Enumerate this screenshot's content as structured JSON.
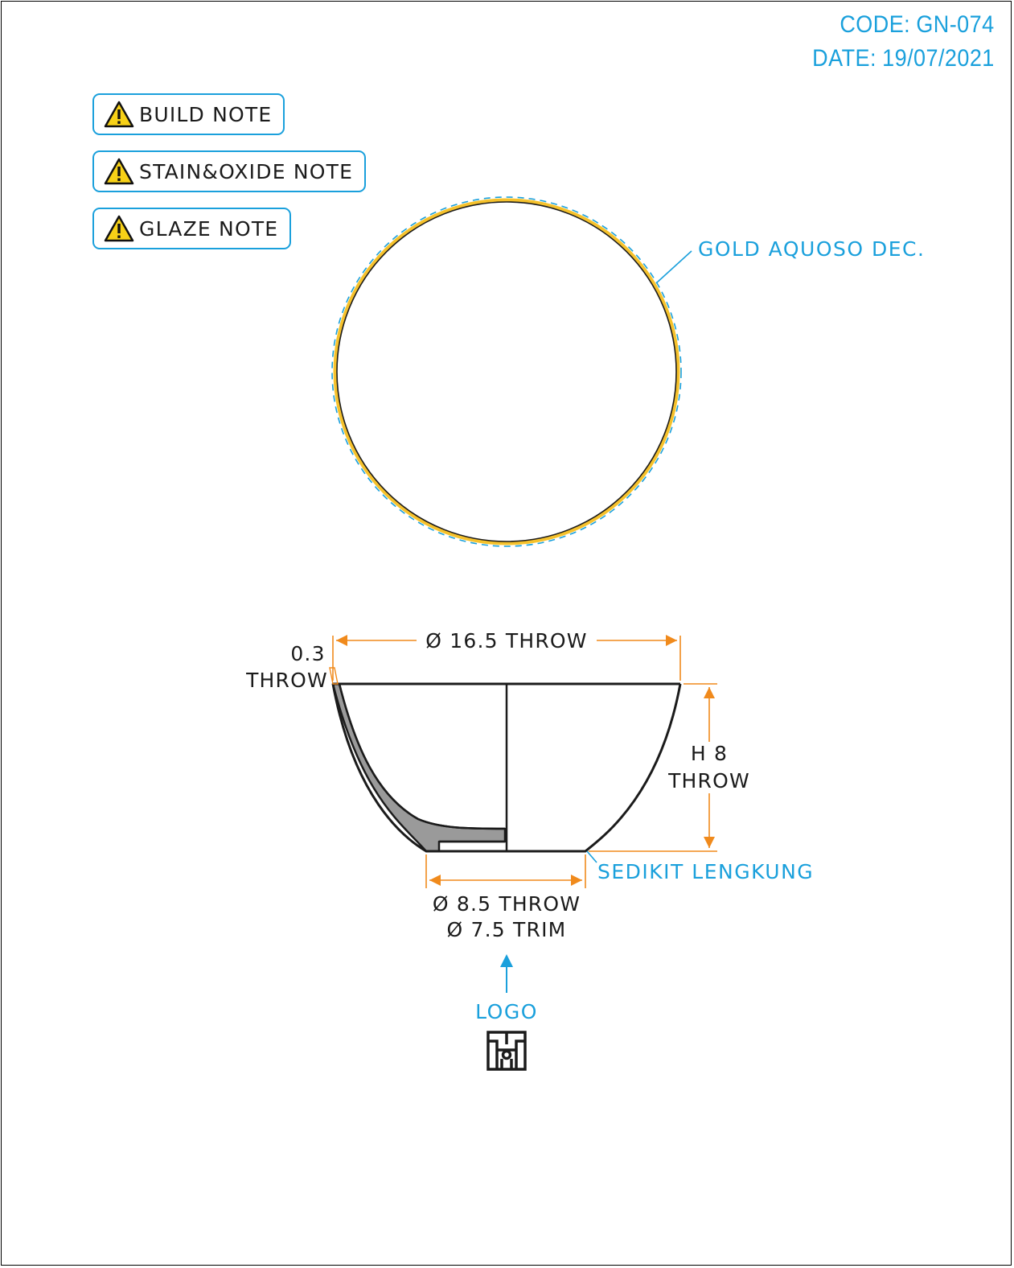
{
  "header": {
    "code_label": "CODE:",
    "code_value": "GN-074",
    "date_label": "DATE:",
    "date_value": "19/07/2021"
  },
  "notes": [
    {
      "label": "BUILD NOTE",
      "icon": "warning-icon"
    },
    {
      "label": "STAIN&OXIDE NOTE",
      "icon": "warning-icon"
    },
    {
      "label": "GLAZE NOTE",
      "icon": "warning-icon"
    }
  ],
  "top_view": {
    "decoration_label": "GOLD AQUOSO DEC."
  },
  "side_view": {
    "rim_diameter": "Ø 16.5 THROW",
    "wall_thickness_value": "0.3",
    "wall_thickness_unit": "THROW",
    "height_value": "H 8",
    "height_unit": "THROW",
    "foot_note": "SEDIKIT LENGKUNG",
    "foot_diameter_throw": "Ø 8.5 THROW",
    "foot_diameter_trim": "Ø 7.5 TRIM"
  },
  "logo": {
    "label": "LOGO",
    "icon": "brand-logo-icon"
  },
  "colors": {
    "accent_blue": "#1aa0dc",
    "dimension_orange": "#f08a1c",
    "gold": "#f6c22c",
    "section_grey": "#9a9a9a",
    "warning_yellow": "#f7d117"
  }
}
